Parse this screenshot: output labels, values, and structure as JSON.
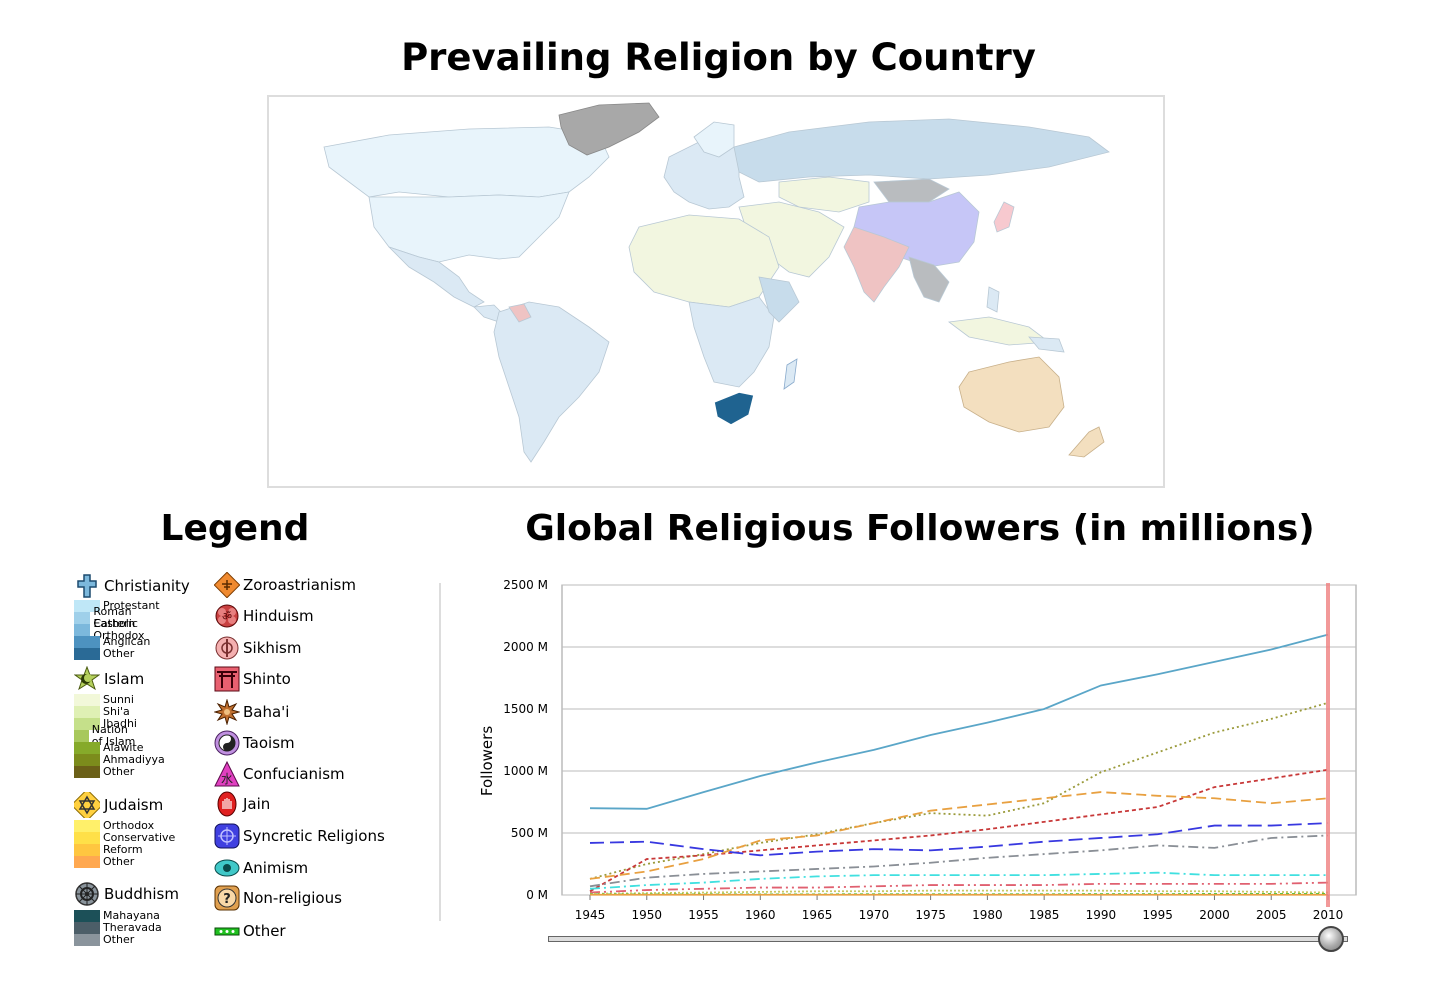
{
  "header": {
    "title": "Prevailing Religion by Country",
    "legend_title": "Legend",
    "chart_title": "Global Religious Followers (in millions)"
  },
  "map": {
    "highlighted_country_color": "#1f6390",
    "colors": {
      "christian": "#dbe9f4",
      "orthodox": "#c7dceb",
      "protestant_light": "#e8f4fb",
      "islam": "#f2f6e0",
      "hinduism": "#efc3c3",
      "buddhism": "#b9bcbf",
      "china": "#c6c6f7",
      "shinto": "#f7c9cf",
      "oceania": "#f3dfbf",
      "na": "#a8a8a8"
    }
  },
  "legend": {
    "christianity": {
      "label": "Christianity",
      "icon": "cross-icon",
      "subs": [
        {
          "label": "Protestant",
          "color": "#bfe7f7"
        },
        {
          "label": "Roman Catholic",
          "color": "#9fd0ea"
        },
        {
          "label": "Eastern Orthodox",
          "color": "#7cb8dc"
        },
        {
          "label": "Anglican",
          "color": "#4d92c0"
        },
        {
          "label": "Other",
          "color": "#2a6a96"
        }
      ]
    },
    "islam": {
      "label": "Islam",
      "icon": "crescent-icon",
      "subs": [
        {
          "label": "Sunni",
          "color": "#f2f8d9"
        },
        {
          "label": "Shi'a",
          "color": "#dff0b4"
        },
        {
          "label": "Ibadhi",
          "color": "#c5e08a"
        },
        {
          "label": "Nation of Islam",
          "color": "#a8c85c"
        },
        {
          "label": "Alawite",
          "color": "#86aa2a"
        },
        {
          "label": "Ahmadiyya",
          "color": "#7c8c1c"
        },
        {
          "label": "Other",
          "color": "#6b6018"
        }
      ]
    },
    "judaism": {
      "label": "Judaism",
      "icon": "star-of-david-icon",
      "subs": [
        {
          "label": "Orthodox",
          "color": "#fff06a"
        },
        {
          "label": "Conservative",
          "color": "#ffe048"
        },
        {
          "label": "Reform",
          "color": "#ffc640"
        },
        {
          "label": "Other",
          "color": "#ffa850"
        }
      ]
    },
    "buddhism": {
      "label": "Buddhism",
      "icon": "dharma-wheel-icon",
      "subs": [
        {
          "label": "Mahayana",
          "color": "#1c5058"
        },
        {
          "label": "Theravada",
          "color": "#4c5e68"
        },
        {
          "label": "Other",
          "color": "#8a949c"
        }
      ]
    },
    "others": [
      {
        "label": "Zoroastrianism",
        "icon": "faravahar-icon",
        "color": "#f08a30"
      },
      {
        "label": "Hinduism",
        "icon": "om-icon",
        "color": "#c84040"
      },
      {
        "label": "Sikhism",
        "icon": "khanda-icon",
        "color": "#f4b0b0"
      },
      {
        "label": "Shinto",
        "icon": "torii-icon",
        "color": "#e86070"
      },
      {
        "label": "Baha'i",
        "icon": "nine-star-icon",
        "color": "#c07030"
      },
      {
        "label": "Taoism",
        "icon": "yin-yang-icon",
        "color": "#c090e0"
      },
      {
        "label": "Confucianism",
        "icon": "confucian-icon",
        "color": "#e040c0"
      },
      {
        "label": "Jain",
        "icon": "jain-hand-icon",
        "color": "#e02020"
      },
      {
        "label": "Syncretic Religions",
        "icon": "syncretic-icon",
        "color": "#4040e0"
      },
      {
        "label": "Animism",
        "icon": "eye-icon",
        "color": "#40c8c8"
      },
      {
        "label": "Non-religious",
        "icon": "question-icon",
        "color": "#e0a050"
      },
      {
        "label": "Other",
        "icon": "dots-icon",
        "color": "#20c020"
      }
    ]
  },
  "chart_data": {
    "type": "line",
    "title": "Global Religious Followers (in millions)",
    "ylabel": "Followers",
    "xlabel": "",
    "ylim": [
      0,
      2500
    ],
    "yticks": [
      0,
      500,
      1000,
      1500,
      2000,
      2500
    ],
    "ytick_labels": [
      "0 M",
      "500 M",
      "1000 M",
      "1500 M",
      "2000 M",
      "2500 M"
    ],
    "x": [
      1945,
      1950,
      1955,
      1960,
      1965,
      1970,
      1975,
      1980,
      1985,
      1990,
      1995,
      2000,
      2005,
      2010
    ],
    "grid": true,
    "marker_year": 2010,
    "series": [
      {
        "color": "#5aa6c8",
        "dash": "",
        "values": [
          700,
          695,
          830,
          960,
          1070,
          1170,
          1290,
          1390,
          1500,
          1690,
          1780,
          1880,
          1980,
          2100
        ]
      },
      {
        "color": "#9a9a3a",
        "dash": "2,3",
        "values": [
          130,
          250,
          330,
          420,
          490,
          580,
          660,
          640,
          740,
          990,
          1150,
          1310,
          1420,
          1550
        ]
      },
      {
        "color": "#c83838",
        "dash": "4,3",
        "values": [
          30,
          290,
          320,
          360,
          400,
          440,
          480,
          530,
          590,
          650,
          710,
          870,
          940,
          1010
        ]
      },
      {
        "color": "#e8a040",
        "dash": "10,5",
        "values": [
          130,
          190,
          290,
          440,
          480,
          580,
          680,
          730,
          780,
          830,
          800,
          780,
          740,
          780
        ]
      },
      {
        "color": "#3838e0",
        "dash": "14,6",
        "values": [
          420,
          430,
          370,
          320,
          350,
          370,
          360,
          390,
          430,
          460,
          490,
          560,
          560,
          580
        ]
      },
      {
        "color": "#8a8f96",
        "dash": "10,4,2,4",
        "values": [
          70,
          140,
          170,
          190,
          210,
          230,
          260,
          300,
          330,
          360,
          400,
          380,
          460,
          480
        ]
      },
      {
        "color": "#40e0e0",
        "dash": "10,4,2,4",
        "values": [
          50,
          80,
          100,
          130,
          150,
          160,
          160,
          160,
          160,
          170,
          180,
          160,
          160,
          160
        ]
      },
      {
        "color": "#e06070",
        "dash": "10,4,2,4,2,4",
        "values": [
          20,
          40,
          50,
          60,
          60,
          70,
          80,
          80,
          80,
          90,
          90,
          90,
          90,
          100
        ]
      },
      {
        "color": "#c8c860",
        "dash": "2,2",
        "values": [
          10,
          15,
          20,
          25,
          30,
          30,
          35,
          35,
          35,
          35,
          30,
          30,
          25,
          20
        ]
      },
      {
        "color": "#30c030",
        "dash": "3,3",
        "values": [
          5,
          5,
          5,
          5,
          5,
          6,
          6,
          6,
          6,
          7,
          7,
          8,
          8,
          8
        ]
      },
      {
        "color": "#e8a040",
        "dash": "",
        "values": [
          2,
          2,
          2,
          2,
          2,
          2,
          2,
          2,
          2,
          2,
          2,
          2,
          2,
          2
        ]
      }
    ]
  },
  "slider": {
    "value": 2010
  }
}
